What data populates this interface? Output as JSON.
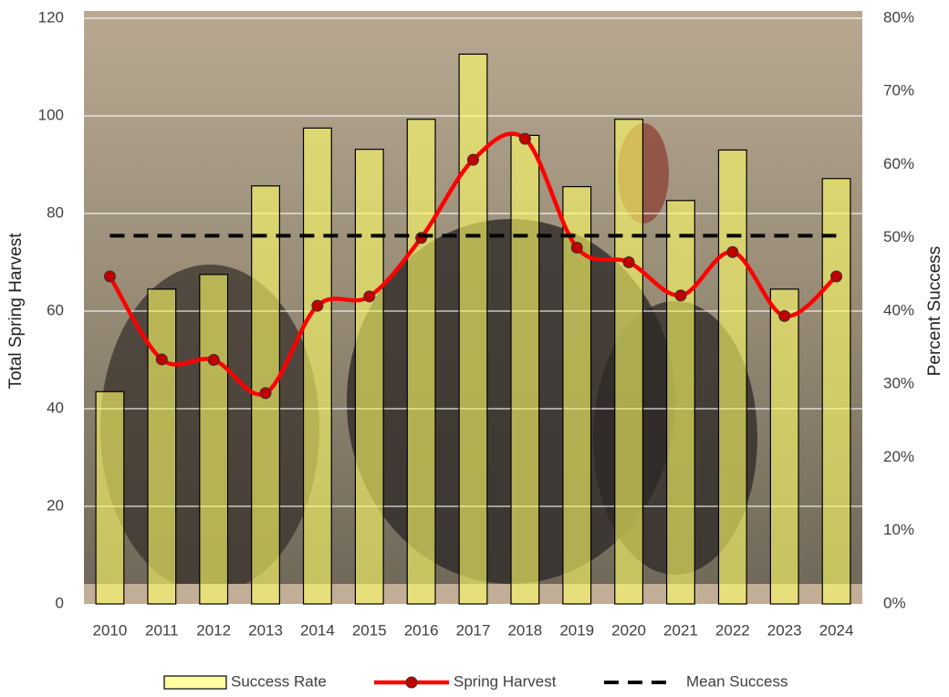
{
  "chart_data": {
    "type": "combo",
    "y_label": "Total Spring Harvest",
    "y2_label": "Percent Success",
    "categories": [
      "2010",
      "2011",
      "2012",
      "2013",
      "2014",
      "2015",
      "2016",
      "2017",
      "2018",
      "2019",
      "2020",
      "2021",
      "2022",
      "2023",
      "2024"
    ],
    "ylim": [
      0,
      120
    ],
    "yticks": [
      0,
      20,
      40,
      60,
      80,
      100,
      120
    ],
    "y2lim": [
      0,
      80
    ],
    "y2ticks": [
      {
        "value": 0,
        "label": "0%"
      },
      {
        "value": 10,
        "label": "10%"
      },
      {
        "value": 20,
        "label": "20%"
      },
      {
        "value": 30,
        "label": "30%"
      },
      {
        "value": 40,
        "label": "40%"
      },
      {
        "value": 50,
        "label": "50%"
      },
      {
        "value": 60,
        "label": "60%"
      },
      {
        "value": 70,
        "label": "70%"
      },
      {
        "value": 80,
        "label": "80%"
      }
    ],
    "grid": true,
    "legend": "bottom",
    "series": [
      {
        "name": "Success Rate",
        "type": "bar",
        "axis": "y2",
        "color": "#ffff66",
        "values": [
          29,
          43,
          45,
          57.1,
          65,
          62.1,
          66.2,
          75.1,
          64,
          57,
          66.2,
          55.1,
          62,
          43,
          58.1
        ]
      },
      {
        "name": "Spring Harvest",
        "type": "line",
        "color": "#ff0000",
        "marker_color": "#c00000",
        "values": [
          67.1,
          50.1,
          50,
          43.2,
          61.1,
          63,
          75,
          91,
          95.3,
          73,
          70,
          63.2,
          72.1,
          59,
          67.1
        ]
      },
      {
        "name": "Mean Success",
        "type": "line",
        "axis": "y2",
        "color": "#000000",
        "dashed": true,
        "values": [
          50.3,
          50.3,
          50.3,
          50.3,
          50.3,
          50.3,
          50.3,
          50.3,
          50.3,
          50.3,
          50.3,
          50.3,
          50.3,
          50.3,
          50.3
        ]
      }
    ]
  }
}
